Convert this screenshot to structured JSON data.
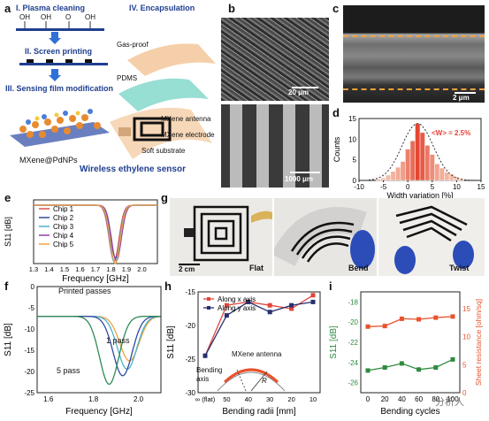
{
  "panels": {
    "a": {
      "letter": "a",
      "steps": [
        "I. Plasma cleaning",
        "II. Screen printing",
        "III. Sensing film modification",
        "IV. Encapsulation"
      ],
      "oh_labels": [
        "OH",
        "OH",
        "O",
        "OH"
      ],
      "layers": [
        "Gas-proof",
        "PDMS",
        "MXene antenna",
        "MXene electrode",
        "Soft substrate"
      ],
      "particle_label": "MXene@PdNPs",
      "caption": "Wireless ethylene sensor"
    },
    "b": {
      "letter": "b",
      "scale_top": "20 μm",
      "scale_bottom": "1000 μm"
    },
    "c": {
      "letter": "c",
      "scale": "2 μm"
    },
    "d": {
      "letter": "d",
      "annotation": "<W> = 2.5%"
    },
    "e": {
      "letter": "e"
    },
    "f": {
      "letter": "f",
      "title": "Printed passes",
      "ann_1": "1 pass",
      "ann_5": "5 pass"
    },
    "g": {
      "letter": "g",
      "labels": [
        "Flat",
        "Bend",
        "Twist"
      ],
      "scale": "2 cm"
    },
    "h": {
      "letter": "h",
      "ann_antenna": "MXene antenna",
      "ann_axis": "Bending\naxis",
      "ann_r": "R"
    },
    "i": {
      "letter": "i",
      "watermark": "分析人"
    }
  },
  "colors": {
    "red": "#e0463c",
    "navy": "#27306e",
    "green": "#2e8b3e",
    "orange": "#e8522c",
    "blue_text": "#1f3f8f"
  },
  "chart_data": [
    {
      "id": "d",
      "type": "bar",
      "xlabel": "Width variation [%]",
      "ylabel": "Counts",
      "xlim": [
        -10,
        15
      ],
      "ylim": [
        0,
        15
      ],
      "xticks": [
        "-10",
        "-5",
        "0",
        "5",
        "10",
        "15"
      ],
      "yticks": [
        "0",
        "5",
        "10",
        "15"
      ],
      "x": [
        -6,
        -5,
        -4,
        -3,
        -2,
        -1,
        0,
        1,
        2,
        3,
        4,
        5,
        6,
        7,
        8,
        9,
        10,
        11
      ],
      "values": [
        0.4,
        0.6,
        1.3,
        2.2,
        3.2,
        4.6,
        7.6,
        9.6,
        13.8,
        11.6,
        8.5,
        6.3,
        4.0,
        3.0,
        2.0,
        1.5,
        0.9,
        0.5
      ]
    },
    {
      "id": "e",
      "type": "line",
      "xlabel": "Frequency [GHz]",
      "ylabel": "S11 [dB]",
      "xlim": [
        1.3,
        2.1
      ],
      "xticks": [
        "1.3",
        "1.4",
        "1.5",
        "1.6",
        "1.7",
        "1.8",
        "1.9",
        "2.0"
      ],
      "legend": "top-left",
      "series": [
        {
          "name": "Chip 1",
          "color": "#d9534f",
          "center": 1.82,
          "depth": 21
        },
        {
          "name": "Chip 2",
          "color": "#2f4aa0",
          "center": 1.83,
          "depth": 20
        },
        {
          "name": "Chip 3",
          "color": "#4ab2c9",
          "center": 1.825,
          "depth": 22
        },
        {
          "name": "Chip 4",
          "color": "#8e3fa8",
          "center": 1.835,
          "depth": 21
        },
        {
          "name": "Chip 5",
          "color": "#f0a23c",
          "center": 1.828,
          "depth": 22
        }
      ]
    },
    {
      "id": "f",
      "type": "line",
      "xlabel": "Frequency [GHz]",
      "ylabel": "S11 [dB]",
      "xlim": [
        1.55,
        2.1
      ],
      "ylim": [
        -25,
        0
      ],
      "xticks": [
        "1.6",
        "1.8",
        "2.0"
      ],
      "yticks": [
        "-25",
        "-20",
        "-15",
        "-10",
        "-5",
        "0"
      ],
      "series": [
        {
          "color": "#f0a23c",
          "center": 1.96,
          "min": -17.5
        },
        {
          "color": "#4ab2c9",
          "center": 1.95,
          "min": -19.5
        },
        {
          "color": "#2f4aa0",
          "center": 1.93,
          "min": -21.0
        },
        {
          "color": "#2e8b57",
          "center": 1.87,
          "min": -23.0
        }
      ]
    },
    {
      "id": "h",
      "type": "line",
      "xlabel": "Bending radii [mm]",
      "ylabel": "S11 [dB]",
      "categories": [
        "∞ (flat)",
        "50",
        "40",
        "30",
        "20",
        "10"
      ],
      "ylim": [
        -30,
        -15
      ],
      "yticks": [
        "-30",
        "-25",
        "-20",
        "-15"
      ],
      "legend": "top-left",
      "series": [
        {
          "name": "Along x axis",
          "color": "#e0463c",
          "values": [
            -24.5,
            -17.0,
            -16.5,
            -17.0,
            -17.5,
            -15.5
          ]
        },
        {
          "name": "Along y axis",
          "color": "#27306e",
          "values": [
            -24.5,
            -18.5,
            -16.5,
            -18.0,
            -17.0,
            -16.5
          ]
        }
      ]
    },
    {
      "id": "i",
      "type": "line",
      "xlabel": "Bending cycles",
      "ylabel": "S11 [dB]",
      "y2label": "Sheet resistance [ohm/sq]",
      "x": [
        0,
        20,
        40,
        60,
        80,
        100
      ],
      "xticks": [
        "0",
        "20",
        "40",
        "60",
        "80",
        "100"
      ],
      "ylim": [
        -27,
        -17
      ],
      "yticks": [
        "-26",
        "-24",
        "-22",
        "-20",
        "-18"
      ],
      "y2lim": [
        0,
        18
      ],
      "y2ticks": [
        "0",
        "5",
        "10",
        "15"
      ],
      "series": [
        {
          "axis": "left",
          "color": "#2e8b3e",
          "values": [
            -24.8,
            -24.5,
            -24.1,
            -24.7,
            -24.5,
            -23.7
          ]
        },
        {
          "axis": "right",
          "color": "#e8522c",
          "values": [
            11.8,
            11.9,
            13.2,
            13.1,
            13.4,
            13.6
          ]
        }
      ]
    }
  ]
}
